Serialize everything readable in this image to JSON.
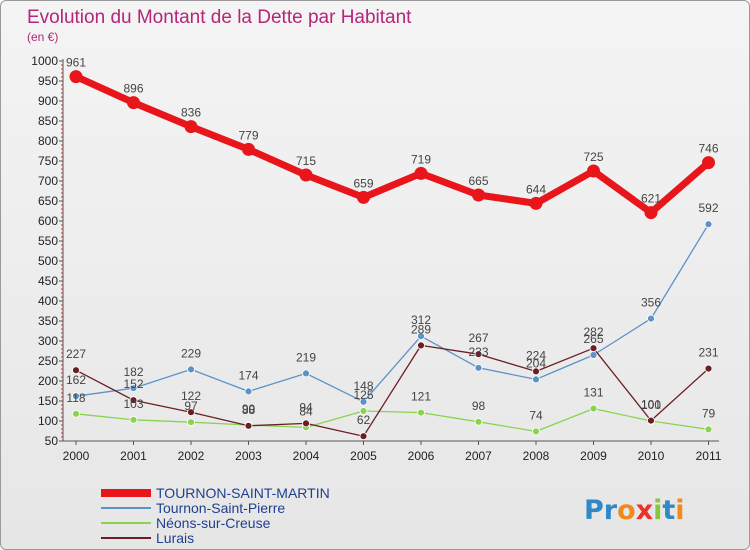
{
  "chart_data": {
    "type": "line",
    "title": "Evolution du Montant de la Dette par Habitant",
    "subtitle": "(en €)",
    "x": [
      "2000",
      "2001",
      "2002",
      "2003",
      "2004",
      "2005",
      "2006",
      "2007",
      "2008",
      "2009",
      "2010",
      "2011"
    ],
    "ylim": [
      50,
      1000
    ],
    "yticks": [
      50,
      100,
      150,
      200,
      250,
      300,
      350,
      400,
      450,
      500,
      550,
      600,
      650,
      700,
      750,
      800,
      850,
      900,
      950,
      1000
    ],
    "grid": false,
    "legend_position": "bottom-left",
    "series": [
      {
        "name": "TOURNON-SAINT-MARTIN",
        "color": "#e8161b",
        "values": [
          961,
          896,
          836,
          779,
          715,
          659,
          719,
          665,
          644,
          725,
          621,
          746
        ]
      },
      {
        "name": "Tournon-Saint-Pierre",
        "color": "#5b92c9",
        "values": [
          162,
          182,
          229,
          174,
          219,
          148,
          312,
          233,
          204,
          265,
          356,
          592
        ]
      },
      {
        "name": "Néons-sur-Creuse",
        "color": "#8ad34f",
        "values": [
          118,
          103,
          97,
          90,
          84,
          125,
          121,
          98,
          74,
          131,
          100,
          79
        ]
      },
      {
        "name": "Lurais",
        "color": "#6b1f24",
        "values": [
          227,
          152,
          122,
          88,
          94,
          62,
          289,
          267,
          224,
          282,
          101,
          231
        ]
      }
    ],
    "data_labels": [
      [
        "961",
        "896",
        "836",
        "779",
        "715",
        "659",
        "719",
        "665",
        "644",
        "725",
        "621",
        "746"
      ],
      [
        "162",
        "182",
        "229",
        "174",
        "219",
        "148",
        "312",
        "233",
        "204",
        "265",
        "356",
        "592"
      ],
      [
        "118",
        "103",
        "97",
        "90",
        "84",
        "125",
        "121",
        "98",
        "74",
        "131",
        "100",
        "79"
      ],
      [
        "227",
        "152",
        "122",
        "88",
        "94",
        "62",
        "289",
        "267",
        "224",
        "282",
        "101",
        "231"
      ]
    ]
  },
  "logo": {
    "text": "Proxiti",
    "letters": [
      "P",
      "r",
      "o",
      "x",
      "i",
      "t",
      "i"
    ],
    "colors": [
      "#2f89c9",
      "#2f89c9",
      "#f08a1c",
      "#e8322a",
      "#8bc53f",
      "#2f89c9",
      "#f08a1c"
    ]
  }
}
